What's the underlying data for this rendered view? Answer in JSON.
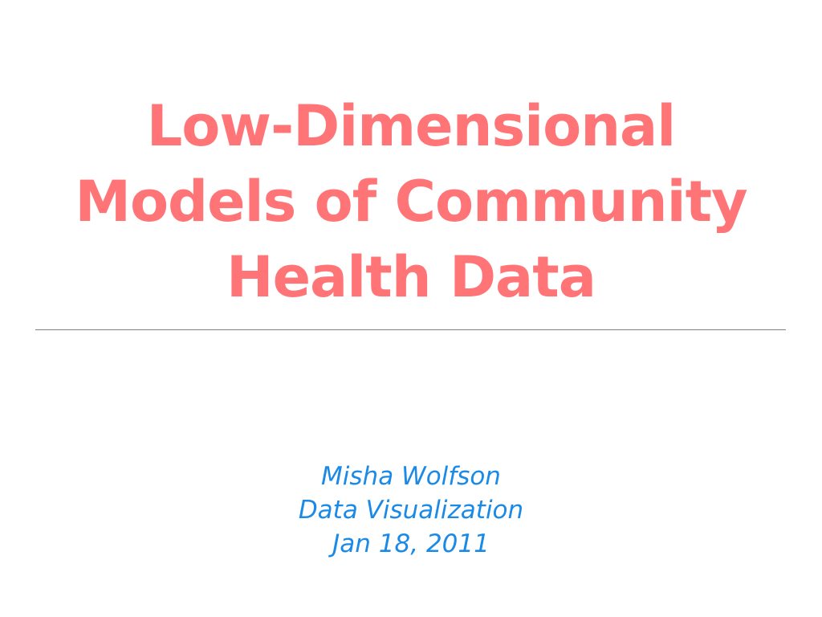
{
  "slide": {
    "title_lines": [
      "Low-Dimensional",
      "Models of Community",
      "Health Data"
    ],
    "subtitle_lines": [
      "Misha Wolfson",
      "Data Visualization",
      "Jan 18, 2011"
    ]
  },
  "colors": {
    "title": "#ff7577",
    "subtitle": "#1a8ae6",
    "divider": "#7f7f7f",
    "background": "#ffffff"
  }
}
